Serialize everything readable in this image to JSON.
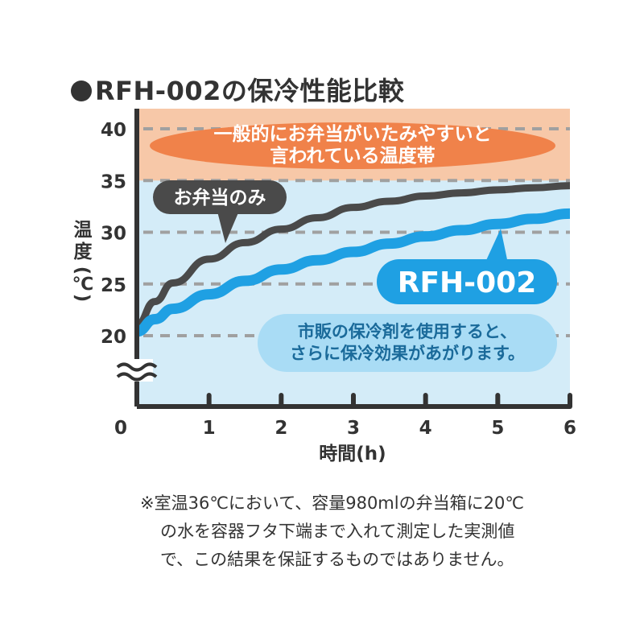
{
  "title": "RFH-002の保冷性能比較",
  "chart_data": {
    "type": "line",
    "xlabel": "時間(h)",
    "ylabel": "温度(℃)",
    "xlim": [
      0,
      6
    ],
    "ylim": [
      20,
      40
    ],
    "x_ticks": [
      "0",
      "1",
      "2",
      "3",
      "4",
      "5",
      "6"
    ],
    "y_ticks": [
      "20",
      "25",
      "30",
      "35",
      "40"
    ],
    "axis_break": true,
    "grid": "dashed horizontal",
    "hot_band": {
      "from": 35,
      "to": 40,
      "label_lines": [
        "一般的にお弁当がいたみやすいと",
        "言われている温度帯"
      ],
      "color": "#f7c8a8",
      "label_color": "#f0824a"
    },
    "series": [
      {
        "name": "お弁当のみ",
        "color": "#4a4a4a",
        "x": [
          0,
          0.25,
          0.5,
          1,
          1.5,
          2,
          2.5,
          3,
          3.5,
          4,
          4.5,
          5,
          5.5,
          6
        ],
        "values": [
          21,
          23.3,
          25.1,
          27.4,
          29.0,
          30.3,
          31.4,
          32.4,
          33.0,
          33.5,
          33.8,
          34.1,
          34.3,
          34.5
        ]
      },
      {
        "name": "RFH-002",
        "color": "#1fa0e3",
        "x": [
          0,
          0.25,
          0.5,
          1,
          1.5,
          2,
          2.5,
          3,
          3.5,
          4,
          4.5,
          5,
          5.5,
          6
        ],
        "values": [
          20.4,
          21.6,
          22.6,
          24.0,
          25.3,
          26.4,
          27.3,
          28.1,
          28.9,
          29.6,
          30.2,
          30.8,
          31.3,
          31.8
        ]
      }
    ],
    "annotations": {
      "callout_lines": [
        "市販の保冷剤を使用すると、",
        "さらに保冷効果があがります。"
      ],
      "callout_color": "#a9dcf5"
    },
    "colors": {
      "plot_bg": "#d4ecf8",
      "axis": "#333333",
      "grid": "#a0a0a0"
    }
  },
  "note_lines": [
    "※室温36℃において、容量980mlの弁当箱に20℃",
    "の水を容器フタ下端まで入れて測定した実測値",
    "で、この結果を保証するものではありません。"
  ]
}
